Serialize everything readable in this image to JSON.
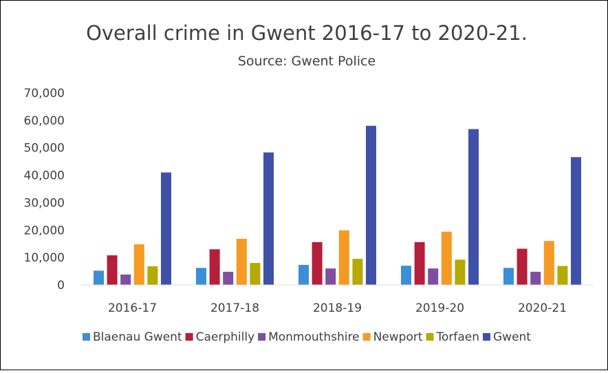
{
  "chart_data": {
    "type": "bar",
    "title": "Overall crime in Gwent  2016-17 to 2020-21.",
    "subtitle": "Source: Gwent Police",
    "categories": [
      "2016-17",
      "2017-18",
      "2018-19",
      "2019-20",
      "2020-21"
    ],
    "ylim": [
      0,
      70000
    ],
    "yticks": [
      "0",
      "10,000",
      "20,000",
      "30,000",
      "40,000",
      "50,000",
      "60,000",
      "70,000"
    ],
    "grid": false,
    "legend_position": "bottom",
    "series": [
      {
        "name": "Blaenau Gwent",
        "color": "#3a8fd6",
        "values": [
          5200,
          6200,
          7300,
          7000,
          6200
        ]
      },
      {
        "name": "Caerphilly",
        "color": "#b51f3a",
        "values": [
          10800,
          13000,
          15600,
          15600,
          13200
        ]
      },
      {
        "name": "Monmouthshire",
        "color": "#7e4fa0",
        "values": [
          3800,
          4800,
          6000,
          6000,
          4800
        ]
      },
      {
        "name": "Newport",
        "color": "#f59a23",
        "values": [
          14800,
          16800,
          19900,
          19400,
          16000
        ]
      },
      {
        "name": "Torfaen",
        "color": "#b4aa00",
        "values": [
          6800,
          8000,
          9500,
          9200,
          6900
        ]
      },
      {
        "name": "Gwent",
        "color": "#3f51a6",
        "values": [
          41000,
          48300,
          58000,
          56800,
          46600
        ]
      }
    ]
  }
}
